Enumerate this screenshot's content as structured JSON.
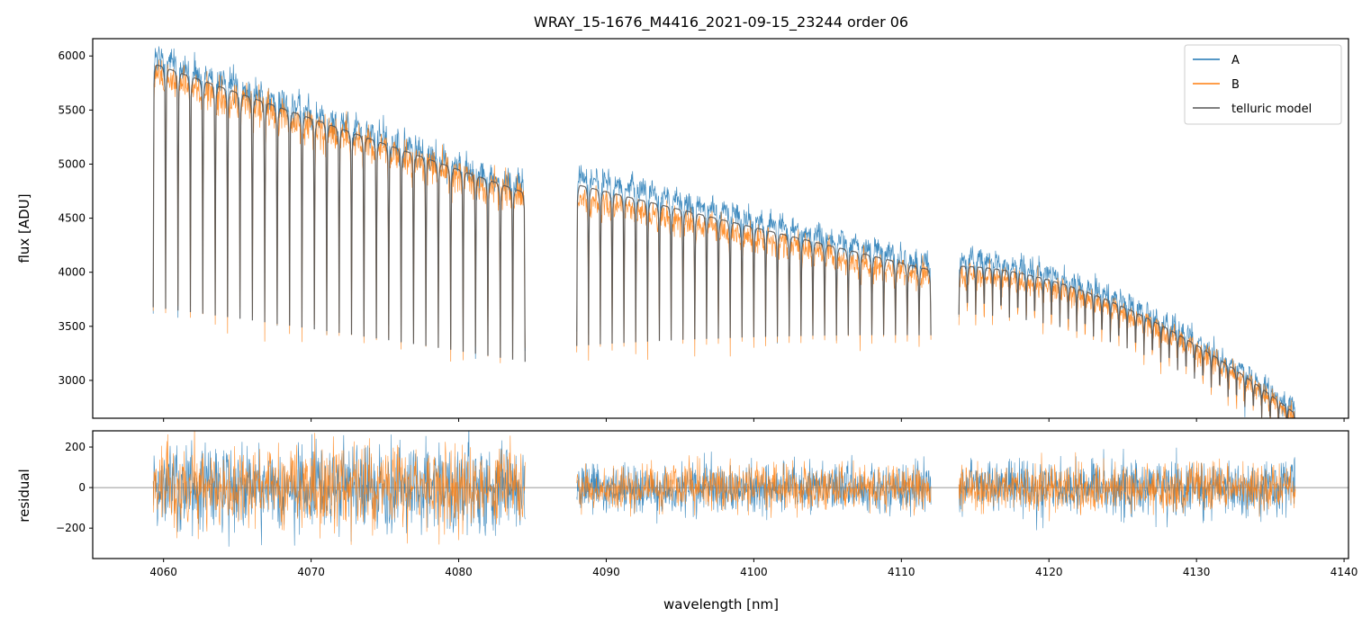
{
  "chart_data": {
    "type": "line",
    "title": "WRAY_15-1676_M4416_2021-09-15_23244  order 06",
    "xlabel": "wavelength [nm]",
    "colors": {
      "A": "#1f77b4",
      "B": "#ff7f0e",
      "model": "#555555",
      "zero_line": "#777777",
      "frame": "#000000"
    },
    "legend": {
      "placement": "top-right",
      "entries": [
        {
          "key": "A",
          "label": "A"
        },
        {
          "key": "B",
          "label": "B"
        },
        {
          "key": "model",
          "label": "telluric model"
        }
      ]
    },
    "x_ticks": [
      "4060",
      "4070",
      "4080",
      "4090",
      "4100",
      "4110",
      "4120",
      "4130",
      "4140"
    ],
    "xlim": [
      4055.2,
      4140.3
    ],
    "top_panel": {
      "ylabel": "flux [ADU]",
      "ylim": [
        2650,
        6160
      ],
      "y_ticks": [
        "3000",
        "3500",
        "4000",
        "4500",
        "5000",
        "5500",
        "6000"
      ]
    },
    "bottom_panel": {
      "ylabel": "residual",
      "ylim": [
        -350,
        280
      ],
      "y_ticks": [
        "200",
        "0",
        "−200"
      ]
    },
    "segments": [
      {
        "x_start": 4059.3,
        "x_end": 4084.5,
        "A_start": 6000,
        "A_end": 4780,
        "B_start": 5860,
        "B_end": 4690,
        "dip_depth_start": 0.35,
        "dip_depth_end": 0.3
      },
      {
        "x_start": 4088.0,
        "x_end": 4112.0,
        "A_start": 4920,
        "A_end": 4080,
        "B_start": 4700,
        "B_end": 3960,
        "dip_depth_start": 0.28,
        "dip_depth_end": 0.12
      },
      {
        "x_start": 4113.9,
        "x_end": 4136.7,
        "A_start": 4120,
        "A_end": 2720,
        "B_start": 3990,
        "B_end": 2660,
        "dip_depth_start": 0.08,
        "dip_depth_end": 0.06
      }
    ],
    "residual_noise_sigma": {
      "A": 75,
      "B": 65
    }
  }
}
